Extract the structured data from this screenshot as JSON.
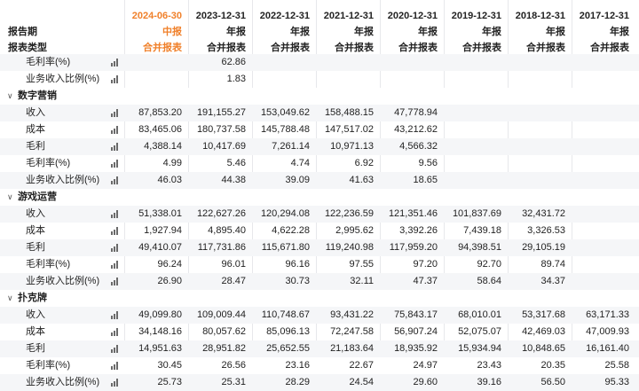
{
  "header": {
    "row1_label": "报告期",
    "row2_label": "报表类型",
    "periods": [
      {
        "date": "2024-06-30",
        "report": "中报",
        "type": "合并报表",
        "highlight": true
      },
      {
        "date": "2023-12-31",
        "report": "年报",
        "type": "合并报表",
        "highlight": false
      },
      {
        "date": "2022-12-31",
        "report": "年报",
        "type": "合并报表",
        "highlight": false
      },
      {
        "date": "2021-12-31",
        "report": "年报",
        "type": "合并报表",
        "highlight": false
      },
      {
        "date": "2020-12-31",
        "report": "年报",
        "type": "合并报表",
        "highlight": false
      },
      {
        "date": "2019-12-31",
        "report": "年报",
        "type": "合并报表",
        "highlight": false
      },
      {
        "date": "2018-12-31",
        "report": "年报",
        "type": "合并报表",
        "highlight": false
      },
      {
        "date": "2017-12-31",
        "report": "年报",
        "type": "合并报表",
        "highlight": false
      }
    ]
  },
  "icons": {
    "metric_chart": "bar-chart-icon",
    "group_toggle": "chevron-down-icon"
  },
  "colors": {
    "highlight": "#f0802a",
    "row_alt": "#f5f6f8",
    "grid": "#e7e8eb"
  },
  "top_rows": [
    {
      "label": "毛利率(%)",
      "values": [
        "",
        "62.86",
        "",
        "",
        "",
        "",
        "",
        ""
      ]
    },
    {
      "label": "业务收入比例(%)",
      "values": [
        "",
        "1.83",
        "",
        "",
        "",
        "",
        "",
        ""
      ]
    }
  ],
  "groups": [
    {
      "name": "数字营销",
      "rows": [
        {
          "label": "收入",
          "values": [
            "87,853.20",
            "191,155.27",
            "153,049.62",
            "158,488.15",
            "47,778.94",
            "",
            "",
            ""
          ]
        },
        {
          "label": "成本",
          "values": [
            "83,465.06",
            "180,737.58",
            "145,788.48",
            "147,517.02",
            "43,212.62",
            "",
            "",
            ""
          ]
        },
        {
          "label": "毛利",
          "values": [
            "4,388.14",
            "10,417.69",
            "7,261.14",
            "10,971.13",
            "4,566.32",
            "",
            "",
            ""
          ]
        },
        {
          "label": "毛利率(%)",
          "values": [
            "4.99",
            "5.46",
            "4.74",
            "6.92",
            "9.56",
            "",
            "",
            ""
          ]
        },
        {
          "label": "业务收入比例(%)",
          "values": [
            "46.03",
            "44.38",
            "39.09",
            "41.63",
            "18.65",
            "",
            "",
            ""
          ]
        }
      ]
    },
    {
      "name": "游戏运营",
      "rows": [
        {
          "label": "收入",
          "values": [
            "51,338.01",
            "122,627.26",
            "120,294.08",
            "122,236.59",
            "121,351.46",
            "101,837.69",
            "32,431.72",
            ""
          ]
        },
        {
          "label": "成本",
          "values": [
            "1,927.94",
            "4,895.40",
            "4,622.28",
            "2,995.62",
            "3,392.26",
            "7,439.18",
            "3,326.53",
            ""
          ]
        },
        {
          "label": "毛利",
          "values": [
            "49,410.07",
            "117,731.86",
            "115,671.80",
            "119,240.98",
            "117,959.20",
            "94,398.51",
            "29,105.19",
            ""
          ]
        },
        {
          "label": "毛利率(%)",
          "values": [
            "96.24",
            "96.01",
            "96.16",
            "97.55",
            "97.20",
            "92.70",
            "89.74",
            ""
          ]
        },
        {
          "label": "业务收入比例(%)",
          "values": [
            "26.90",
            "28.47",
            "30.73",
            "32.11",
            "47.37",
            "58.64",
            "34.37",
            ""
          ]
        }
      ]
    },
    {
      "name": "扑克牌",
      "rows": [
        {
          "label": "收入",
          "values": [
            "49,099.80",
            "109,009.44",
            "110,748.67",
            "93,431.22",
            "75,843.17",
            "68,010.01",
            "53,317.68",
            "63,171.33"
          ]
        },
        {
          "label": "成本",
          "values": [
            "34,148.16",
            "80,057.62",
            "85,096.13",
            "72,247.58",
            "56,907.24",
            "52,075.07",
            "42,469.03",
            "47,009.93"
          ]
        },
        {
          "label": "毛利",
          "values": [
            "14,951.63",
            "28,951.82",
            "25,652.55",
            "21,183.64",
            "18,935.92",
            "15,934.94",
            "10,848.65",
            "16,161.40"
          ]
        },
        {
          "label": "毛利率(%)",
          "values": [
            "30.45",
            "26.56",
            "23.16",
            "22.67",
            "24.97",
            "23.43",
            "20.35",
            "25.58"
          ]
        },
        {
          "label": "业务收入比例(%)",
          "values": [
            "25.73",
            "25.31",
            "28.29",
            "24.54",
            "29.60",
            "39.16",
            "56.50",
            "95.33"
          ]
        }
      ]
    }
  ]
}
